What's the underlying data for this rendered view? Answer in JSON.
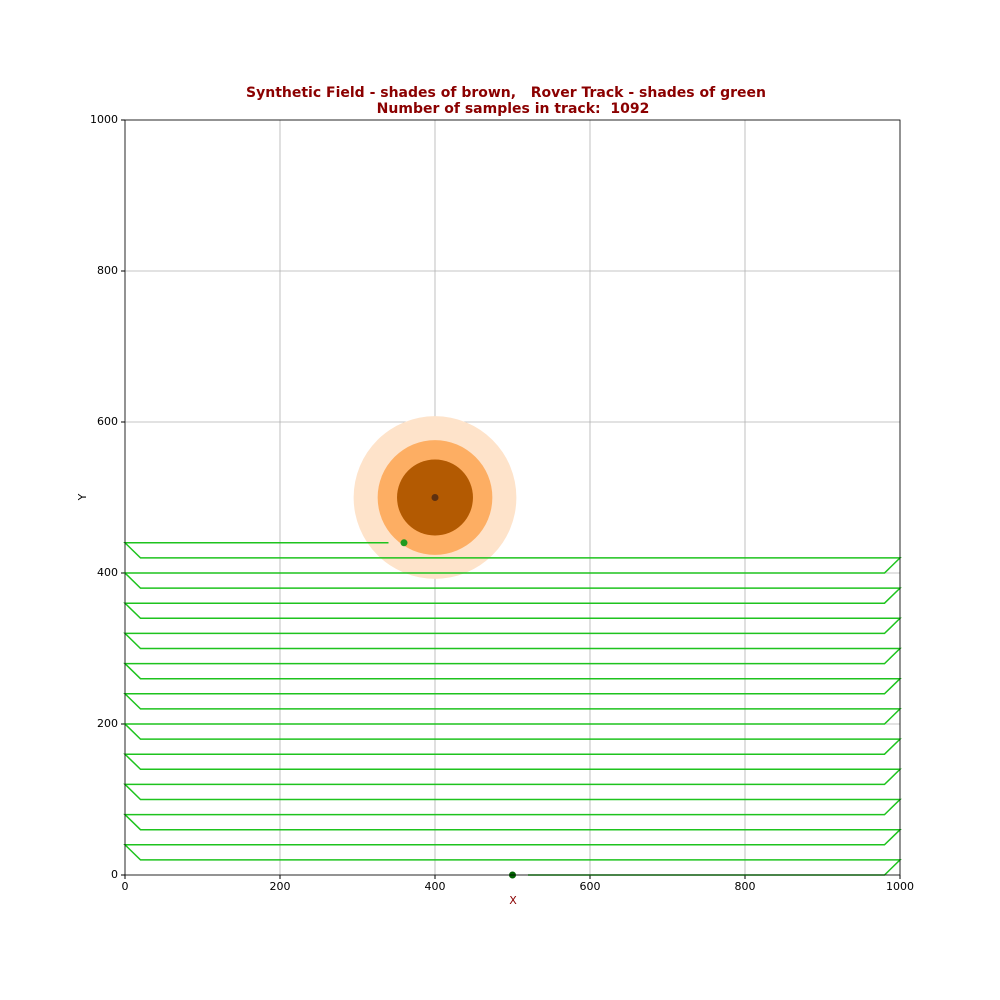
{
  "chart_data": {
    "type": "line",
    "title": "Synthetic Field - shades of brown,   Rover Track - shades of green",
    "subtitle": "Number of samples in track:  1092",
    "x_label": "X",
    "y_label": "Y",
    "xlim": [
      0,
      1000
    ],
    "ylim": [
      0,
      1000
    ],
    "xticks": [
      0,
      200,
      400,
      600,
      800,
      1000
    ],
    "yticks": [
      0,
      200,
      400,
      600,
      800,
      1000
    ],
    "grid": true,
    "field": {
      "x": 400,
      "y": 500,
      "radii": [
        105,
        74,
        49
      ],
      "colors": [
        "#fee3ca",
        "#fdae63",
        "#b35a02"
      ],
      "center_color": "#5e3010"
    },
    "track": {
      "color": "#1ec31e",
      "x": [
        520,
        980,
        1000,
        20,
        0,
        980,
        1000,
        20,
        0,
        980,
        1000,
        20,
        0,
        980,
        1000,
        20,
        0,
        980,
        1000,
        20,
        0,
        980,
        1000,
        20,
        0,
        980,
        1000,
        20,
        0,
        980,
        1000,
        20,
        0,
        980,
        1000,
        20,
        0,
        980,
        1000,
        20,
        0,
        980,
        1000,
        20,
        0,
        340
      ],
      "y": [
        0,
        0,
        20,
        20,
        40,
        40,
        60,
        60,
        80,
        80,
        100,
        100,
        120,
        120,
        140,
        140,
        160,
        160,
        180,
        180,
        200,
        200,
        220,
        220,
        240,
        240,
        260,
        260,
        280,
        280,
        300,
        300,
        320,
        320,
        340,
        340,
        360,
        360,
        380,
        380,
        400,
        400,
        420,
        420,
        440,
        440
      ]
    },
    "points": [
      {
        "x": 500,
        "y": 0,
        "color": "#006400"
      },
      {
        "x": 360,
        "y": 440,
        "color": "#1f9a1f"
      }
    ]
  }
}
